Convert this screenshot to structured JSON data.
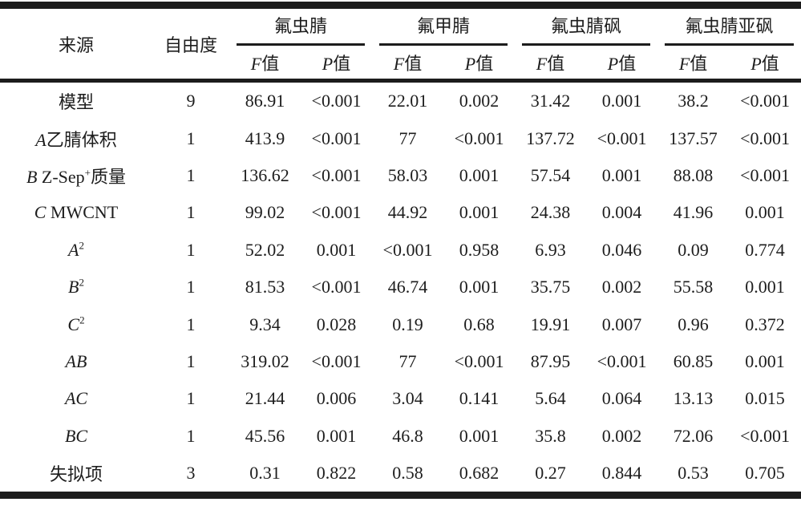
{
  "chart_data": {
    "type": "table",
    "header": {
      "source": "来源",
      "df": "自由度",
      "groups": [
        "氟虫腈",
        "氟甲腈",
        "氟虫腈砜",
        "氟虫腈亚砜"
      ],
      "f_label": {
        "it": "F",
        "rest": "值"
      },
      "p_label": {
        "it": "P",
        "rest": "值"
      }
    },
    "rows": [
      {
        "source": [
          {
            "t": "模型"
          }
        ],
        "df": "9",
        "values": [
          "86.91",
          "<0.001",
          "22.01",
          "0.002",
          "31.42",
          "0.001",
          "38.2",
          "<0.001"
        ]
      },
      {
        "source": [
          {
            "t": "A",
            "s": "it"
          },
          {
            "t": "乙腈体积"
          }
        ],
        "df": "1",
        "values": [
          "413.9",
          "<0.001",
          "77",
          "<0.001",
          "137.72",
          "<0.001",
          "137.57",
          "<0.001"
        ]
      },
      {
        "source": [
          {
            "t": "B",
            "s": "it"
          },
          {
            "t": " Z-Sep"
          },
          {
            "t": "+",
            "s": "sup"
          },
          {
            "t": "质量"
          }
        ],
        "df": "1",
        "values": [
          "136.62",
          "<0.001",
          "58.03",
          "0.001",
          "57.54",
          "0.001",
          "88.08",
          "<0.001"
        ]
      },
      {
        "source": [
          {
            "t": "C",
            "s": "it"
          },
          {
            "t": " MWCNT"
          }
        ],
        "df": "1",
        "values": [
          "99.02",
          "<0.001",
          "44.92",
          "0.001",
          "24.38",
          "0.004",
          "41.96",
          "0.001"
        ]
      },
      {
        "source": [
          {
            "t": "A",
            "s": "it"
          },
          {
            "t": "2",
            "s": "sup"
          }
        ],
        "df": "1",
        "values": [
          "52.02",
          "0.001",
          "<0.001",
          "0.958",
          "6.93",
          "0.046",
          "0.09",
          "0.774"
        ]
      },
      {
        "source": [
          {
            "t": "B",
            "s": "it"
          },
          {
            "t": "2",
            "s": "sup"
          }
        ],
        "df": "1",
        "values": [
          "81.53",
          "<0.001",
          "46.74",
          "0.001",
          "35.75",
          "0.002",
          "55.58",
          "0.001"
        ]
      },
      {
        "source": [
          {
            "t": "C",
            "s": "it"
          },
          {
            "t": "2",
            "s": "sup"
          }
        ],
        "df": "1",
        "values": [
          "9.34",
          "0.028",
          "0.19",
          "0.68",
          "19.91",
          "0.007",
          "0.96",
          "0.372"
        ]
      },
      {
        "source": [
          {
            "t": "AB",
            "s": "it"
          }
        ],
        "df": "1",
        "values": [
          "319.02",
          "<0.001",
          "77",
          "<0.001",
          "87.95",
          "<0.001",
          "60.85",
          "0.001"
        ]
      },
      {
        "source": [
          {
            "t": "AC",
            "s": "it"
          }
        ],
        "df": "1",
        "values": [
          "21.44",
          "0.006",
          "3.04",
          "0.141",
          "5.64",
          "0.064",
          "13.13",
          "0.015"
        ]
      },
      {
        "source": [
          {
            "t": "BC",
            "s": "it"
          }
        ],
        "df": "1",
        "values": [
          "45.56",
          "0.001",
          "46.8",
          "0.001",
          "35.8",
          "0.002",
          "72.06",
          "<0.001"
        ]
      },
      {
        "source": [
          {
            "t": "失拟项"
          }
        ],
        "df": "3",
        "values": [
          "0.31",
          "0.822",
          "0.58",
          "0.682",
          "0.27",
          "0.844",
          "0.53",
          "0.705"
        ]
      }
    ]
  }
}
